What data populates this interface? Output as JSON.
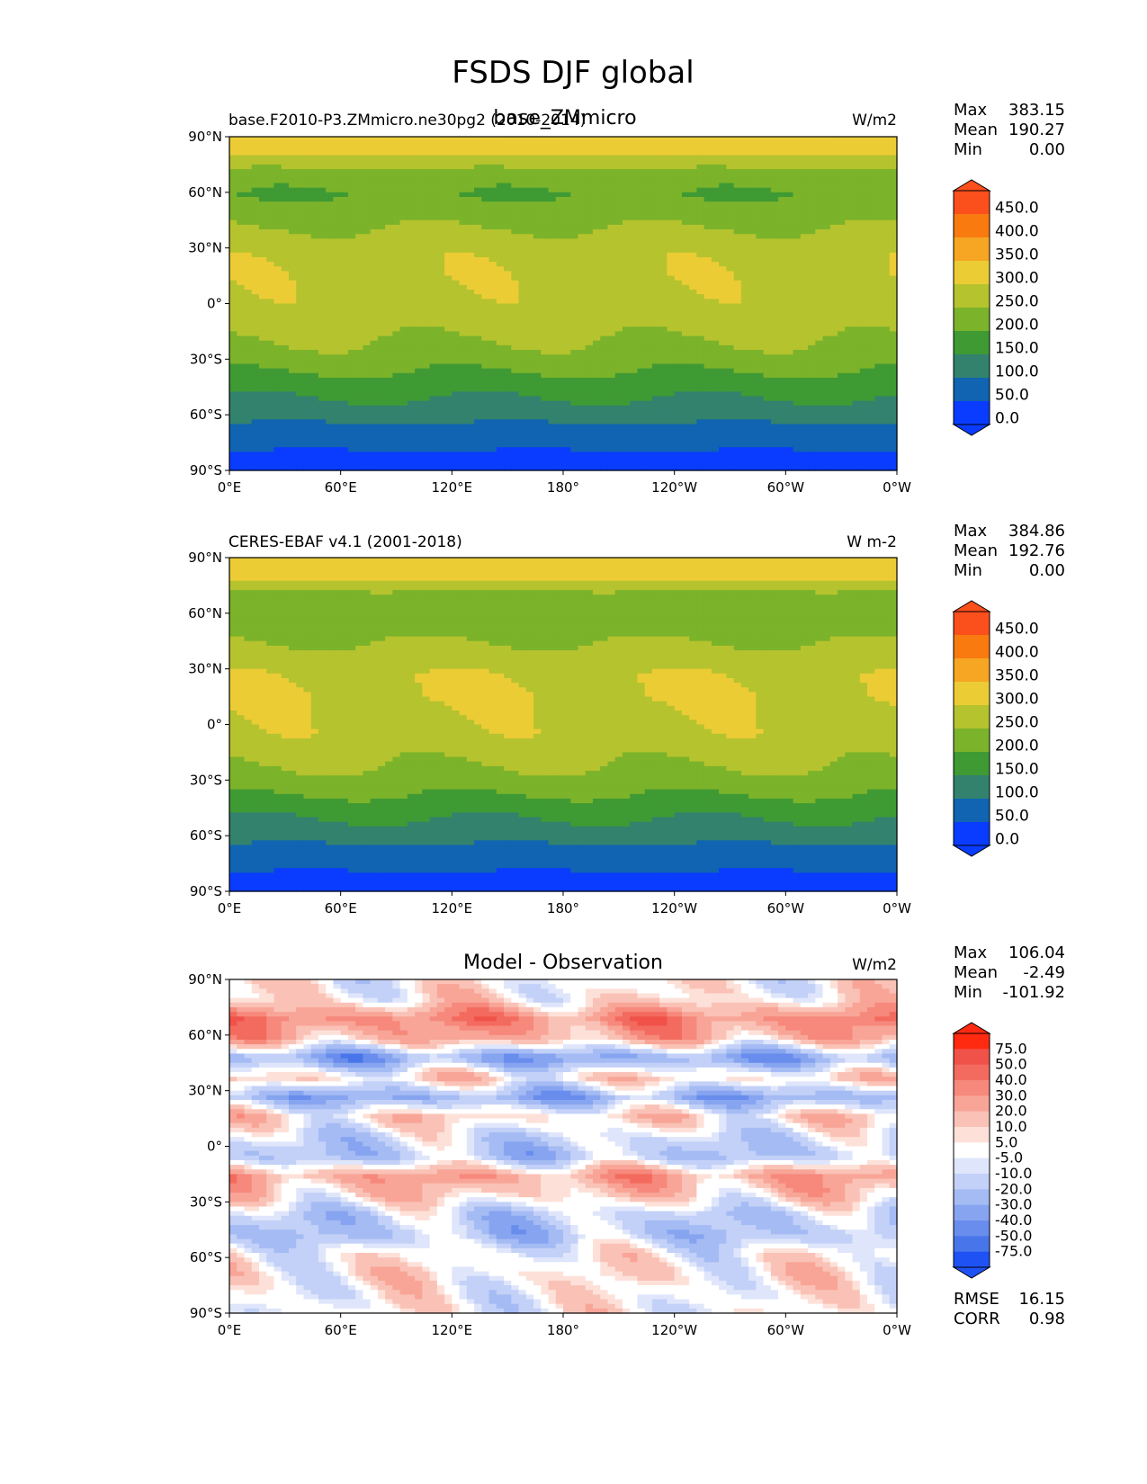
{
  "figure_title": "FSDS DJF global",
  "chart_data": [
    {
      "type": "heatmap",
      "title": "base_ZMmicro",
      "left_title": "base.F2010-P3.ZMmicro.ne30pg2 (2010-2014)",
      "units": "W/m2",
      "stats": [
        {
          "label": "Max",
          "value": "383.15"
        },
        {
          "label": "Mean",
          "value": "190.27"
        },
        {
          "label": "Min",
          "value": "0.00"
        }
      ],
      "colorbar": {
        "labels": [
          "450.0",
          "400.0",
          "350.0",
          "300.0",
          "250.0",
          "200.0",
          "150.0",
          "100.0",
          "50.0",
          "0.0"
        ],
        "colors": [
          "#fb4f1c",
          "#f97a0f",
          "#f6a623",
          "#eccc35",
          "#b5c32e",
          "#7bb32a",
          "#3f9a34",
          "#32826e",
          "#1064b1",
          "#0a3cff"
        ]
      },
      "x_ticks": [
        "0°E",
        "60°E",
        "120°E",
        "180°",
        "120°W",
        "60°W",
        "0°W"
      ],
      "y_ticks": [
        "90°N",
        "60°N",
        "30°N",
        "0°",
        "30°S",
        "60°S",
        "90°S"
      ],
      "lat_profile": [
        0,
        50,
        80,
        130,
        160,
        200,
        235,
        260,
        280,
        285,
        290,
        285,
        260,
        230,
        200,
        215,
        300,
        340
      ],
      "xlim": [
        0,
        360
      ],
      "ylim": [
        -90,
        90
      ]
    },
    {
      "type": "heatmap",
      "title": "",
      "left_title": "CERES-EBAF v4.1 (2001-2018)",
      "units": "W m-2",
      "stats": [
        {
          "label": "Max",
          "value": "384.86"
        },
        {
          "label": "Mean",
          "value": "192.76"
        },
        {
          "label": "Min",
          "value": "0.00"
        }
      ],
      "colorbar": {
        "labels": [
          "450.0",
          "400.0",
          "350.0",
          "300.0",
          "250.0",
          "200.0",
          "150.0",
          "100.0",
          "50.0",
          "0.0"
        ],
        "colors": [
          "#fb4f1c",
          "#f97a0f",
          "#f6a623",
          "#eccc35",
          "#b5c32e",
          "#7bb32a",
          "#3f9a34",
          "#32826e",
          "#1064b1",
          "#0a3cff"
        ]
      },
      "x_ticks": [
        "0°E",
        "60°E",
        "120°E",
        "180°",
        "120°W",
        "60°W",
        "0°W"
      ],
      "y_ticks": [
        "90°N",
        "60°N",
        "30°N",
        "0°",
        "30°S",
        "60°S",
        "90°S"
      ],
      "lat_profile": [
        0,
        50,
        80,
        130,
        160,
        205,
        240,
        265,
        285,
        290,
        300,
        295,
        270,
        240,
        210,
        225,
        310,
        345
      ],
      "xlim": [
        0,
        360
      ],
      "ylim": [
        -90,
        90
      ]
    },
    {
      "type": "heatmap",
      "title": "Model - Observation",
      "left_title": "",
      "units": "W/m2",
      "stats": [
        {
          "label": "Max",
          "value": "106.04"
        },
        {
          "label": "Mean",
          "value": "-2.49"
        },
        {
          "label": "Min",
          "value": "-101.92"
        }
      ],
      "footer_stats": [
        {
          "label": "RMSE",
          "value": "16.15"
        },
        {
          "label": "CORR",
          "value": "0.98"
        }
      ],
      "colorbar": {
        "labels": [
          "75.0",
          "50.0",
          "40.0",
          "30.0",
          "20.0",
          "10.0",
          "5.0",
          "-5.0",
          "-10.0",
          "-20.0",
          "-30.0",
          "-40.0",
          "-50.0",
          "-75.0"
        ],
        "colors": [
          "#ff2a10",
          "#f0524a",
          "#f36b5e",
          "#f6887c",
          "#f8a597",
          "#fac2b6",
          "#fde1d9",
          "#ffffff",
          "#dfe6fb",
          "#c3d1f8",
          "#a5bbf4",
          "#87a4f0",
          "#688ded",
          "#4876ea",
          "#1f52f5"
        ]
      },
      "x_ticks": [
        "0°E",
        "60°E",
        "120°E",
        "180°",
        "120°W",
        "60°W",
        "0°W"
      ],
      "y_ticks": [
        "90°N",
        "60°N",
        "30°N",
        "0°",
        "30°S",
        "60°S",
        "90°S"
      ],
      "lat_profile": [
        0,
        0,
        5,
        0,
        -20,
        -15,
        10,
        25,
        -20,
        -10,
        10,
        -30,
        10,
        -35,
        20,
        35,
        5,
        0
      ],
      "xlim": [
        0,
        360
      ],
      "ylim": [
        -90,
        90
      ]
    }
  ]
}
